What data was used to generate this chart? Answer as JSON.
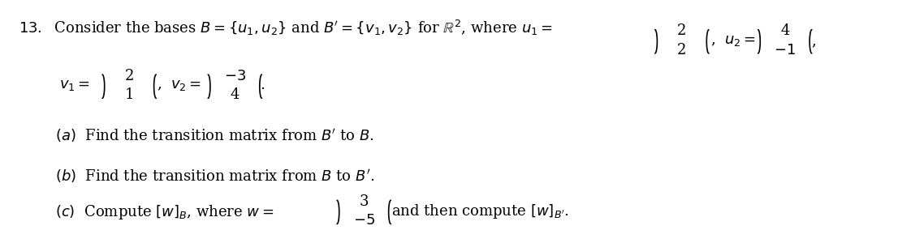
{
  "bg_color": "#ffffff",
  "text_color": "#000000",
  "figsize": [
    11.06,
    2.84
  ],
  "dpi": 100,
  "line1": {
    "prefix": "13.\\u2002Consider the bases ",
    "part1": "$B$",
    "p2": " = {",
    "p3": "$u_1, u_2$",
    "p4": "} and ",
    "p5": "$B'$",
    "p6": " = {",
    "p7": "$v_1, v_2$",
    "p8": "} for ",
    "p9": "$\\\\mathbb{R}^2$",
    "p10": ", where ",
    "p11": "$u_1$",
    "p12": " = ",
    "mat_u1": [
      "2",
      "2"
    ],
    "p13": ", ",
    "p14": "$u_2$",
    "p15": " = ",
    "mat_u2": [
      "4",
      "-1"
    ],
    "p16": ","
  },
  "line2": {
    "prefix": "$v_1$",
    "p2": " = ",
    "mat_v1": [
      "2",
      "1"
    ],
    "p3": ", ",
    "p4": "$v_2$",
    "p5": " = ",
    "mat_v2": [
      "-3",
      "4"
    ],
    "p6": "."
  },
  "line_a": "(a)\\u2002Find the transition matrix from $B'$ to $B$.",
  "line_b": "(b)\\u2002Find the transition matrix from $B$ to $B'$.",
  "line_c_pre": "(c)\\u2002Compute $[w]_B$, where $w$ = ",
  "mat_w": [
    "3",
    "-5"
  ],
  "line_c_post": " and then compute $[w]_{B'}$."
}
